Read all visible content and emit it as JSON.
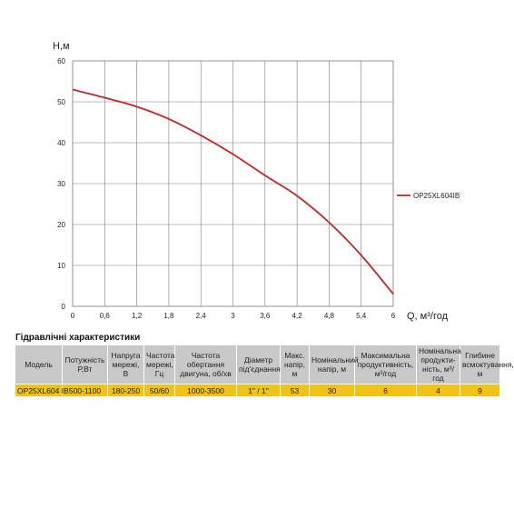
{
  "chart_data": {
    "type": "line",
    "ylabel": "H,м",
    "xlabel": "Q, м³/год",
    "xlim": [
      0,
      6
    ],
    "ylim": [
      0,
      60
    ],
    "x_ticks": [
      "0",
      "0,6",
      "1,2",
      "1,8",
      "2,4",
      "3",
      "3,6",
      "4,2",
      "4,8",
      "5,4",
      "6"
    ],
    "y_ticks": [
      "0",
      "10",
      "20",
      "30",
      "40",
      "50",
      "60"
    ],
    "grid": true,
    "legend_position": "right",
    "series": [
      {
        "name": "OP25XL604IB",
        "color": "#c0272d",
        "x": [
          0,
          0.6,
          1.2,
          1.8,
          2.4,
          3.0,
          3.6,
          4.2,
          4.8,
          5.4,
          6.0
        ],
        "y": [
          53,
          51,
          48.8,
          45.8,
          41.8,
          37.2,
          32,
          27,
          20.5,
          12.5,
          3
        ]
      }
    ]
  },
  "table": {
    "title": "Гідравлічні характеристики",
    "headers": [
      "Модель",
      "Потужність Р,Вт",
      "Напруга мережі, В",
      "Частота мережі, Гц",
      "Частота обертання двигуна, об/хв",
      "Діаметр під'єднання",
      "Макс. напір, м",
      "Номінальний напір, м",
      "Максимальна продуктивність, м³/год",
      "Номінальна продукти-ність, м³/год",
      "Глибине всмоктування, м"
    ],
    "rows": [
      [
        "OP25XL604 IB",
        "500-1100",
        "180-250",
        "50/60",
        "1000-3500",
        "1\" / 1\"",
        "53",
        "30",
        "6",
        "4",
        "9"
      ]
    ]
  }
}
